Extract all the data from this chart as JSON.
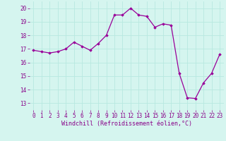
{
  "x": [
    0,
    1,
    2,
    3,
    4,
    5,
    6,
    7,
    8,
    9,
    10,
    11,
    12,
    13,
    14,
    15,
    16,
    17,
    18,
    19,
    20,
    21,
    22,
    23
  ],
  "y": [
    16.9,
    16.8,
    16.7,
    16.8,
    17.0,
    17.5,
    17.2,
    16.9,
    17.4,
    18.0,
    19.5,
    19.5,
    20.0,
    19.5,
    19.4,
    18.6,
    18.85,
    18.75,
    15.2,
    13.4,
    13.35,
    14.5,
    15.2,
    16.6
  ],
  "line_color": "#990099",
  "marker": "D",
  "marker_size": 1.8,
  "line_width": 0.9,
  "xlabel": "Windchill (Refroidissement éolien,°C)",
  "xlabel_fontsize": 6,
  "ylim": [
    12.5,
    20.5
  ],
  "xlim": [
    -0.5,
    23.5
  ],
  "yticks": [
    13,
    14,
    15,
    16,
    17,
    18,
    19,
    20
  ],
  "xticks": [
    0,
    1,
    2,
    3,
    4,
    5,
    6,
    7,
    8,
    9,
    10,
    11,
    12,
    13,
    14,
    15,
    16,
    17,
    18,
    19,
    20,
    21,
    22,
    23
  ],
  "background_color": "#d5f5ef",
  "grid_color": "#b8e8e0",
  "tick_color": "#880088",
  "tick_fontsize": 5.5
}
